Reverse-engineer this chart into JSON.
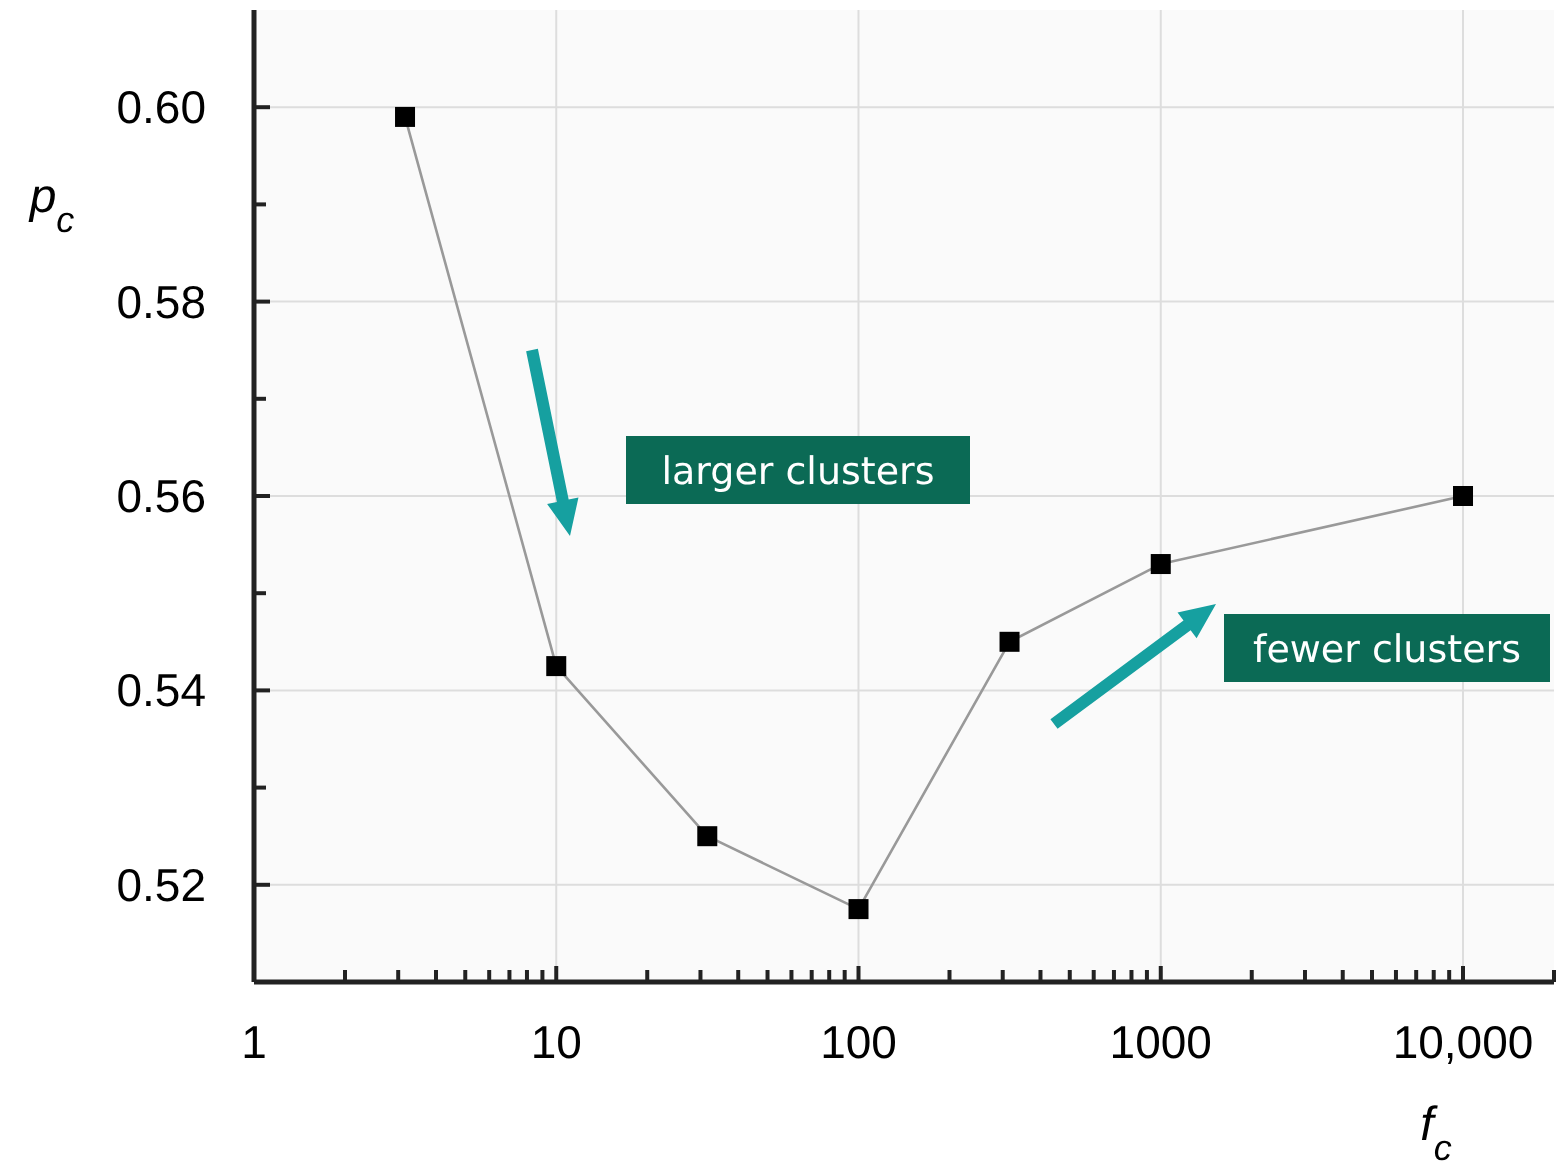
{
  "chart_data": {
    "type": "line",
    "xlabel": "f$_{c}$",
    "ylabel": "p$_{c}$",
    "log": "x",
    "x": [
      3.16,
      10,
      31.6,
      100,
      316,
      1000,
      10000
    ],
    "series": [
      {
        "color": "#999999",
        "values": [
          0.599,
          0.5425,
          0.525,
          0.5175,
          0.545,
          0.553,
          0.56
        ]
      }
    ],
    "marker": "square",
    "line_style": "solid",
    "grid": true,
    "xlim": [
      1,
      20000
    ],
    "xticks": [
      1,
      {
        "value": 2,
        "label": null
      },
      {
        "value": 3,
        "label": null
      },
      {
        "value": 4,
        "label": null
      },
      {
        "value": 5,
        "label": null
      },
      {
        "value": 6,
        "label": null
      },
      {
        "value": 7,
        "label": null
      },
      {
        "value": 8,
        "label": null
      },
      {
        "value": 9,
        "label": null
      },
      10,
      {
        "value": 20,
        "label": null
      },
      {
        "value": 30,
        "label": null
      },
      {
        "value": 40,
        "label": null
      },
      {
        "value": 50,
        "label": null
      },
      {
        "value": 60,
        "label": null
      },
      {
        "value": 70,
        "label": null
      },
      {
        "value": 80,
        "label": null
      },
      {
        "value": 90,
        "label": null
      },
      100,
      {
        "value": 200,
        "label": null
      },
      {
        "value": 300,
        "label": null
      },
      {
        "value": 400,
        "label": null
      },
      {
        "value": 500,
        "label": null
      },
      {
        "value": 600,
        "label": null
      },
      {
        "value": 700,
        "label": null
      },
      {
        "value": 800,
        "label": null
      },
      {
        "value": 900,
        "label": null
      },
      1000,
      {
        "value": 2000,
        "label": null
      },
      {
        "value": 3000,
        "label": null
      },
      {
        "value": 4000,
        "label": null
      },
      {
        "value": 5000,
        "label": null
      },
      {
        "value": 6000,
        "label": null
      },
      {
        "value": 7000,
        "label": null
      },
      {
        "value": 8000,
        "label": null
      },
      {
        "value": 9000,
        "label": null
      },
      {
        "value": 10000,
        "label": "10,000"
      },
      {
        "value": 20000,
        "label": null
      }
    ],
    "ylim": [
      0.51,
      0.61
    ],
    "yticks": [
      {
        "value": 0.52,
        "label": "0.52"
      },
      {
        "value": 0.53,
        "label": null
      },
      {
        "value": 0.54,
        "label": "0.54"
      },
      {
        "value": 0.55,
        "label": null
      },
      {
        "value": 0.56,
        "label": "0.56"
      },
      {
        "value": 0.57,
        "label": null
      },
      {
        "value": 0.58,
        "label": "0.58"
      },
      {
        "value": 0.59,
        "label": null
      },
      {
        "value": 0.6,
        "label": "0.60"
      }
    ],
    "annotations": [
      "larger clusters",
      "fewer clusters"
    ]
  }
}
